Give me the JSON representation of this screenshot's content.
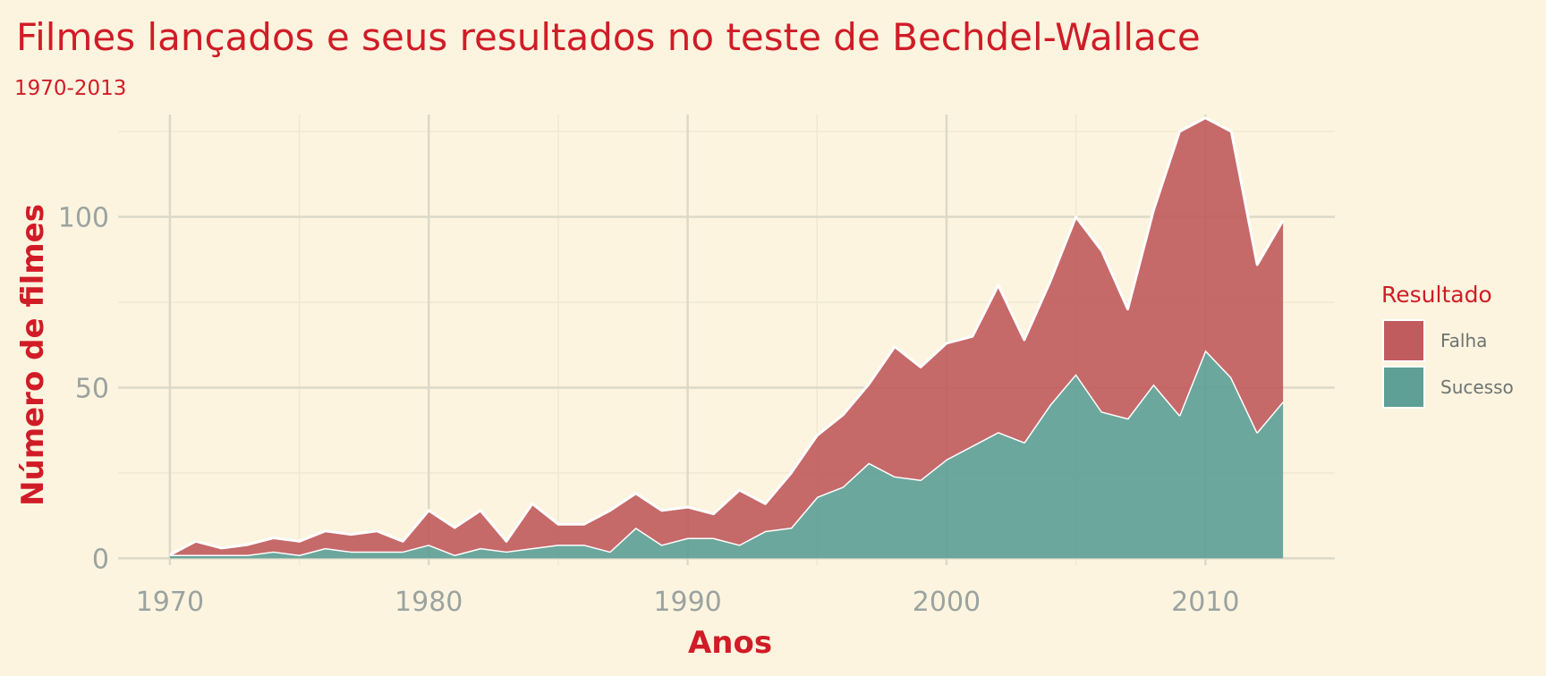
{
  "chart_data": {
    "type": "area",
    "stacked": true,
    "title": "Filmes lançados e seus resultados no teste de Bechdel-Wallace",
    "subtitle": "1970-2013",
    "xlabel": "Anos",
    "ylabel": "Número de filmes",
    "xlim": [
      1968,
      2015
    ],
    "ylim": [
      -2,
      130
    ],
    "x_ticks": [
      1970,
      1980,
      1990,
      2000,
      2010
    ],
    "y_ticks": [
      0,
      50,
      100
    ],
    "grid": true,
    "legend": {
      "title": "Resultado",
      "position": "right"
    },
    "x": [
      1970,
      1971,
      1972,
      1973,
      1974,
      1975,
      1976,
      1977,
      1978,
      1979,
      1980,
      1981,
      1982,
      1983,
      1984,
      1985,
      1986,
      1987,
      1988,
      1989,
      1990,
      1991,
      1992,
      1993,
      1994,
      1995,
      1996,
      1997,
      1998,
      1999,
      2000,
      2001,
      2002,
      2003,
      2004,
      2005,
      2006,
      2007,
      2008,
      2009,
      2010,
      2011,
      2012,
      2013
    ],
    "series": [
      {
        "name": "Sucesso",
        "color": "#5e9f96",
        "values": [
          1,
          1,
          1,
          1,
          2,
          1,
          3,
          2,
          2,
          2,
          4,
          1,
          3,
          2,
          3,
          4,
          4,
          2,
          9,
          4,
          6,
          6,
          4,
          8,
          9,
          18,
          21,
          28,
          24,
          23,
          29,
          33,
          37,
          34,
          45,
          54,
          43,
          41,
          51,
          42,
          61,
          53,
          37,
          46
        ]
      },
      {
        "name": "Falha",
        "color": "#c15c5e",
        "values": [
          0,
          4,
          2,
          3,
          4,
          4,
          5,
          5,
          6,
          3,
          10,
          8,
          11,
          3,
          13,
          6,
          6,
          12,
          10,
          10,
          9,
          7,
          16,
          8,
          16,
          18,
          21,
          23,
          38,
          33,
          34,
          32,
          43,
          30,
          36,
          46,
          47,
          32,
          51,
          83,
          68,
          72,
          49,
          53
        ]
      }
    ]
  }
}
